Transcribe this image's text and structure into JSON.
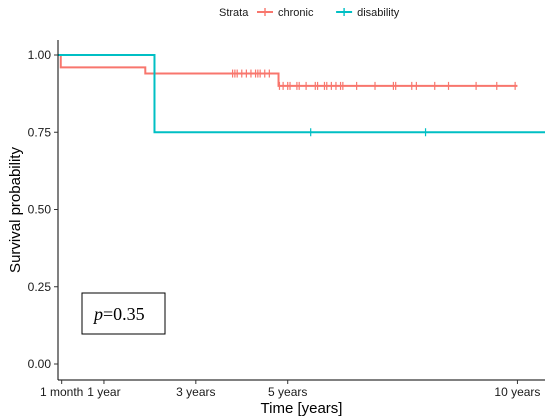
{
  "chart_data": {
    "type": "line",
    "subtype": "kaplan-meier-step",
    "xlabel": "Time [years]",
    "ylabel": "Survival probability",
    "xlim": [
      0,
      10.6
    ],
    "ylim": [
      0,
      1
    ],
    "x_ticks": [
      {
        "value": 0.08,
        "label": "1 month"
      },
      {
        "value": 1,
        "label": "1 year"
      },
      {
        "value": 3,
        "label": "3 years"
      },
      {
        "value": 5,
        "label": "5 years"
      },
      {
        "value": 10,
        "label": "10 years"
      }
    ],
    "y_ticks": [
      {
        "value": 0,
        "label": "0.00"
      },
      {
        "value": 0.25,
        "label": "0.25"
      },
      {
        "value": 0.5,
        "label": "0.50"
      },
      {
        "value": 0.75,
        "label": "0.75"
      },
      {
        "value": 1,
        "label": "1.00"
      }
    ],
    "legend": {
      "title": "Strata",
      "placement": "top",
      "entries": [
        "chronic",
        "disability"
      ]
    },
    "annotation": {
      "p_label": "p",
      "p_value": "=0.35"
    },
    "grid": false,
    "series": [
      {
        "name": "chronic",
        "color": "#F8766D",
        "steps": [
          [
            0,
            1.0
          ],
          [
            0.06,
            0.96
          ],
          [
            1.9,
            0.94
          ],
          [
            4.8,
            0.9
          ],
          [
            10.0,
            0.9
          ]
        ],
        "censored": [
          [
            3.8,
            0.94
          ],
          [
            3.85,
            0.94
          ],
          [
            3.9,
            0.94
          ],
          [
            4.0,
            0.94
          ],
          [
            4.1,
            0.94
          ],
          [
            4.2,
            0.94
          ],
          [
            4.3,
            0.94
          ],
          [
            4.35,
            0.94
          ],
          [
            4.4,
            0.94
          ],
          [
            4.5,
            0.94
          ],
          [
            4.6,
            0.94
          ],
          [
            4.82,
            0.9
          ],
          [
            4.9,
            0.9
          ],
          [
            5.0,
            0.9
          ],
          [
            5.05,
            0.9
          ],
          [
            5.2,
            0.9
          ],
          [
            5.25,
            0.9
          ],
          [
            5.4,
            0.9
          ],
          [
            5.6,
            0.9
          ],
          [
            5.65,
            0.9
          ],
          [
            5.8,
            0.9
          ],
          [
            5.85,
            0.9
          ],
          [
            5.95,
            0.9
          ],
          [
            6.05,
            0.9
          ],
          [
            6.15,
            0.9
          ],
          [
            6.2,
            0.9
          ],
          [
            6.5,
            0.9
          ],
          [
            6.9,
            0.9
          ],
          [
            7.3,
            0.9
          ],
          [
            7.35,
            0.9
          ],
          [
            7.7,
            0.9
          ],
          [
            7.8,
            0.9
          ],
          [
            8.2,
            0.9
          ],
          [
            8.5,
            0.9
          ],
          [
            9.1,
            0.9
          ],
          [
            9.55,
            0.9
          ],
          [
            9.95,
            0.9
          ]
        ]
      },
      {
        "name": "disability",
        "color": "#00BFC4",
        "steps": [
          [
            0,
            1.0
          ],
          [
            2.1,
            0.75
          ],
          [
            10.6,
            0.75
          ]
        ],
        "censored": [
          [
            5.5,
            0.75
          ],
          [
            8.0,
            0.75
          ]
        ]
      }
    ]
  }
}
